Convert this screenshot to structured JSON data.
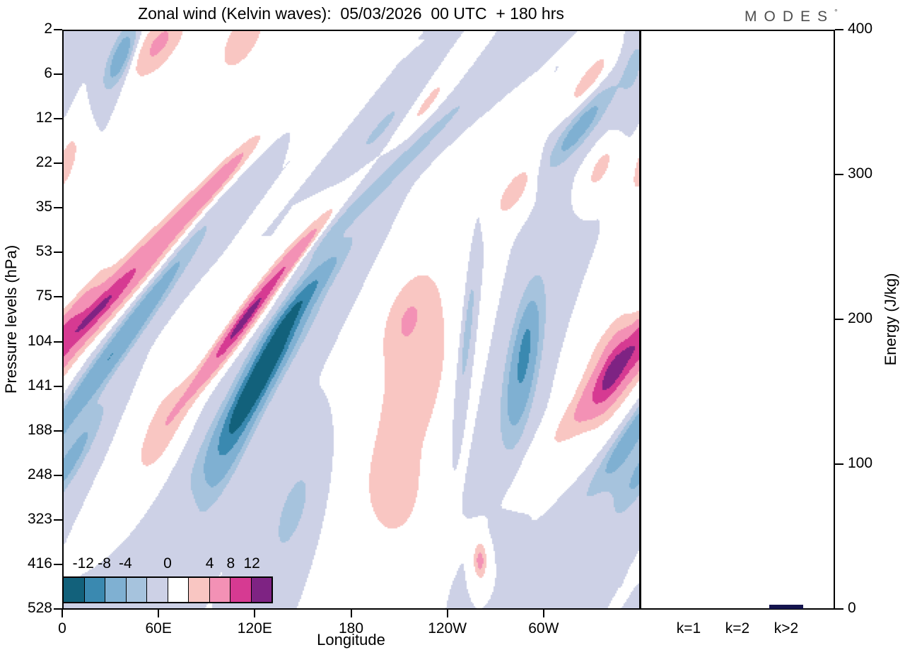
{
  "logo": {
    "text": "MODES",
    "degree": "°"
  },
  "chart_data": [
    {
      "type": "filled_contour",
      "title": "Zonal wind (Kelvin waves):  05/03/2026  00 UTC  + 180 hrs",
      "xlabel": "Longitude",
      "ylabel": "Pressure levels (hPa)",
      "x_axis": {
        "range_deg": [
          0,
          360
        ]
      },
      "x_ticks": [
        {
          "deg": 0,
          "label": "0"
        },
        {
          "deg": 60,
          "label": "60E"
        },
        {
          "deg": 120,
          "label": "120E"
        },
        {
          "deg": 180,
          "label": "180"
        },
        {
          "deg": 240,
          "label": "120W"
        },
        {
          "deg": 300,
          "label": "60W"
        }
      ],
      "pressure_levels_hpa": [
        2,
        6,
        12,
        22,
        35,
        53,
        75,
        104,
        141,
        188,
        248,
        323,
        416,
        528
      ],
      "colorbar": {
        "thresholds": [
          -12,
          -8,
          -4,
          -2,
          0,
          2,
          4,
          8,
          12
        ],
        "tick_labels": [
          "-12",
          "-8",
          "-4",
          "0",
          "4",
          "8",
          "12"
        ],
        "tick_boundaries": [
          1,
          2,
          3,
          5,
          7,
          8,
          9
        ],
        "colors": [
          "#12617b",
          "#3a89b0",
          "#7fb0d2",
          "#a6c3dd",
          "#cdd1e6",
          "#ffffff",
          "#f9c6c2",
          "#f391b5",
          "#d63a92",
          "#7e2383"
        ]
      },
      "field_features": [
        {
          "amp": 9,
          "lon": 21,
          "row": 6.3,
          "slope": -25,
          "w": 12,
          "l": 2.3
        },
        {
          "amp": 4.5,
          "lon": 21,
          "row": 6.3,
          "slope": -25,
          "w": 5,
          "l": 0.6
        },
        {
          "amp": 5,
          "lon": 96,
          "row": 3.4,
          "slope": -25,
          "w": 7,
          "l": 1.0
        },
        {
          "amp": 4.5,
          "lon": 60,
          "row": 0.3,
          "slope": -15,
          "w": 13,
          "l": 0.8
        },
        {
          "amp": 4,
          "lon": 112,
          "row": 0.2,
          "slope": -12,
          "w": 11,
          "l": 0.7
        },
        {
          "amp": -6.5,
          "lon": 36,
          "row": 0.6,
          "slope": -10,
          "w": 7,
          "l": 0.7
        },
        {
          "amp": -8,
          "lon": 30,
          "row": 7.3,
          "slope": -20,
          "w": 8,
          "l": 2.6
        },
        {
          "amp": -5,
          "lon": 6,
          "row": 9.6,
          "slope": -15,
          "w": 8,
          "l": 1.2
        },
        {
          "amp": 10,
          "lon": 113,
          "row": 6.5,
          "slope": -20,
          "w": 7,
          "l": 1.6
        },
        {
          "amp": 5,
          "lon": 113,
          "row": 6.5,
          "slope": -20,
          "w": 3.5,
          "l": 0.55
        },
        {
          "amp": 4,
          "lon": 147,
          "row": 5.0,
          "slope": -22,
          "w": 5,
          "l": 1.1
        },
        {
          "amp": -14,
          "lon": 125,
          "row": 7.6,
          "slope": -15,
          "w": 8,
          "l": 1.5
        },
        {
          "amp": -4,
          "lon": 123,
          "row": 7.8,
          "slope": -18,
          "w": 14,
          "l": 2.4
        },
        {
          "amp": -5,
          "lon": 106,
          "row": 9.3,
          "slope": -12,
          "w": 9,
          "l": 1.5
        },
        {
          "amp": -5,
          "lon": 150,
          "row": 6.0,
          "slope": -22,
          "w": 7,
          "l": 1.1
        },
        {
          "amp": -2.8,
          "lon": 205,
          "row": 3.2,
          "slope": -28,
          "w": 9,
          "l": 2.6
        },
        {
          "amp": -5.5,
          "lon": 322,
          "row": 2.2,
          "slope": -20,
          "w": 9,
          "l": 0.9
        },
        {
          "amp": 3.2,
          "lon": 218,
          "row": 8.0,
          "slope": -6,
          "w": 24,
          "l": 2.6
        },
        {
          "amp": 2.6,
          "lon": 214,
          "row": 6.4,
          "slope": -8,
          "w": 13,
          "l": 0.9
        },
        {
          "amp": 2.5,
          "lon": 207,
          "row": 10.4,
          "slope": 0,
          "w": 16,
          "l": 1.0
        },
        {
          "amp": -6.5,
          "lon": 287,
          "row": 7.5,
          "slope": -4,
          "w": 8,
          "l": 1.5
        },
        {
          "amp": -2,
          "lon": 286,
          "row": 7.4,
          "slope": -6,
          "w": 13,
          "l": 2.2
        },
        {
          "amp": -2.5,
          "lon": 288,
          "row": 7.1,
          "slope": -4,
          "w": 3,
          "l": 0.5
        },
        {
          "amp": 4,
          "lon": 342,
          "row": 7.6,
          "slope": -8,
          "w": 18,
          "l": 1.3
        },
        {
          "amp": 4.2,
          "lon": 342,
          "row": 7.6,
          "slope": -8,
          "w": 7,
          "l": 0.8
        },
        {
          "amp": -2.5,
          "lon": 348,
          "row": 9.8,
          "slope": -10,
          "w": 10,
          "l": 0.9
        },
        {
          "amp": -2.8,
          "lon": 143,
          "row": 10.8,
          "slope": -8,
          "w": 11,
          "l": 1.2
        },
        {
          "amp": 5,
          "lon": 260,
          "row": 11.9,
          "slope": 0,
          "w": 4,
          "l": 0.4
        },
        {
          "amp": 3,
          "lon": 2,
          "row": 3.0,
          "slope": -8,
          "w": 7,
          "l": 0.8
        },
        {
          "amp": 3,
          "lon": 282,
          "row": 3.6,
          "slope": -15,
          "w": 10,
          "l": 0.7
        },
        {
          "amp": 3,
          "lon": 328,
          "row": 1.1,
          "slope": -18,
          "w": 8,
          "l": 0.7
        },
        {
          "amp": 2.5,
          "lon": 228,
          "row": 1.6,
          "slope": -20,
          "w": 6,
          "l": 0.7
        },
        {
          "amp": -2.2,
          "lon": 356,
          "row": 0.8,
          "slope": -5,
          "w": 8,
          "l": 1.0
        },
        {
          "amp": -2.5,
          "lon": 198,
          "row": 2.2,
          "slope": -22,
          "w": 7,
          "l": 0.8
        },
        {
          "amp": -3.5,
          "lon": 252,
          "row": 6.8,
          "slope": -3,
          "w": 4,
          "l": 1.8
        },
        {
          "amp": 2.8,
          "lon": 335,
          "row": 3.1,
          "slope": -12,
          "w": 7,
          "l": 0.55
        },
        {
          "amp": 3.5,
          "lon": 4,
          "row": 6.5,
          "slope": -18,
          "w": 6,
          "l": 1.2
        },
        {
          "amp": 3,
          "lon": 62,
          "row": 8.9,
          "slope": -10,
          "w": 13,
          "l": 1.3
        }
      ]
    },
    {
      "type": "bar",
      "ylabel": "Energy (J/kg)",
      "ylim": [
        0,
        400
      ],
      "y_ticks": [
        0,
        100,
        200,
        300,
        400
      ],
      "categories": [
        "k=1",
        "k=2",
        "k>2"
      ],
      "values": [
        0,
        0,
        3
      ],
      "bar_color": "#14144e"
    }
  ]
}
